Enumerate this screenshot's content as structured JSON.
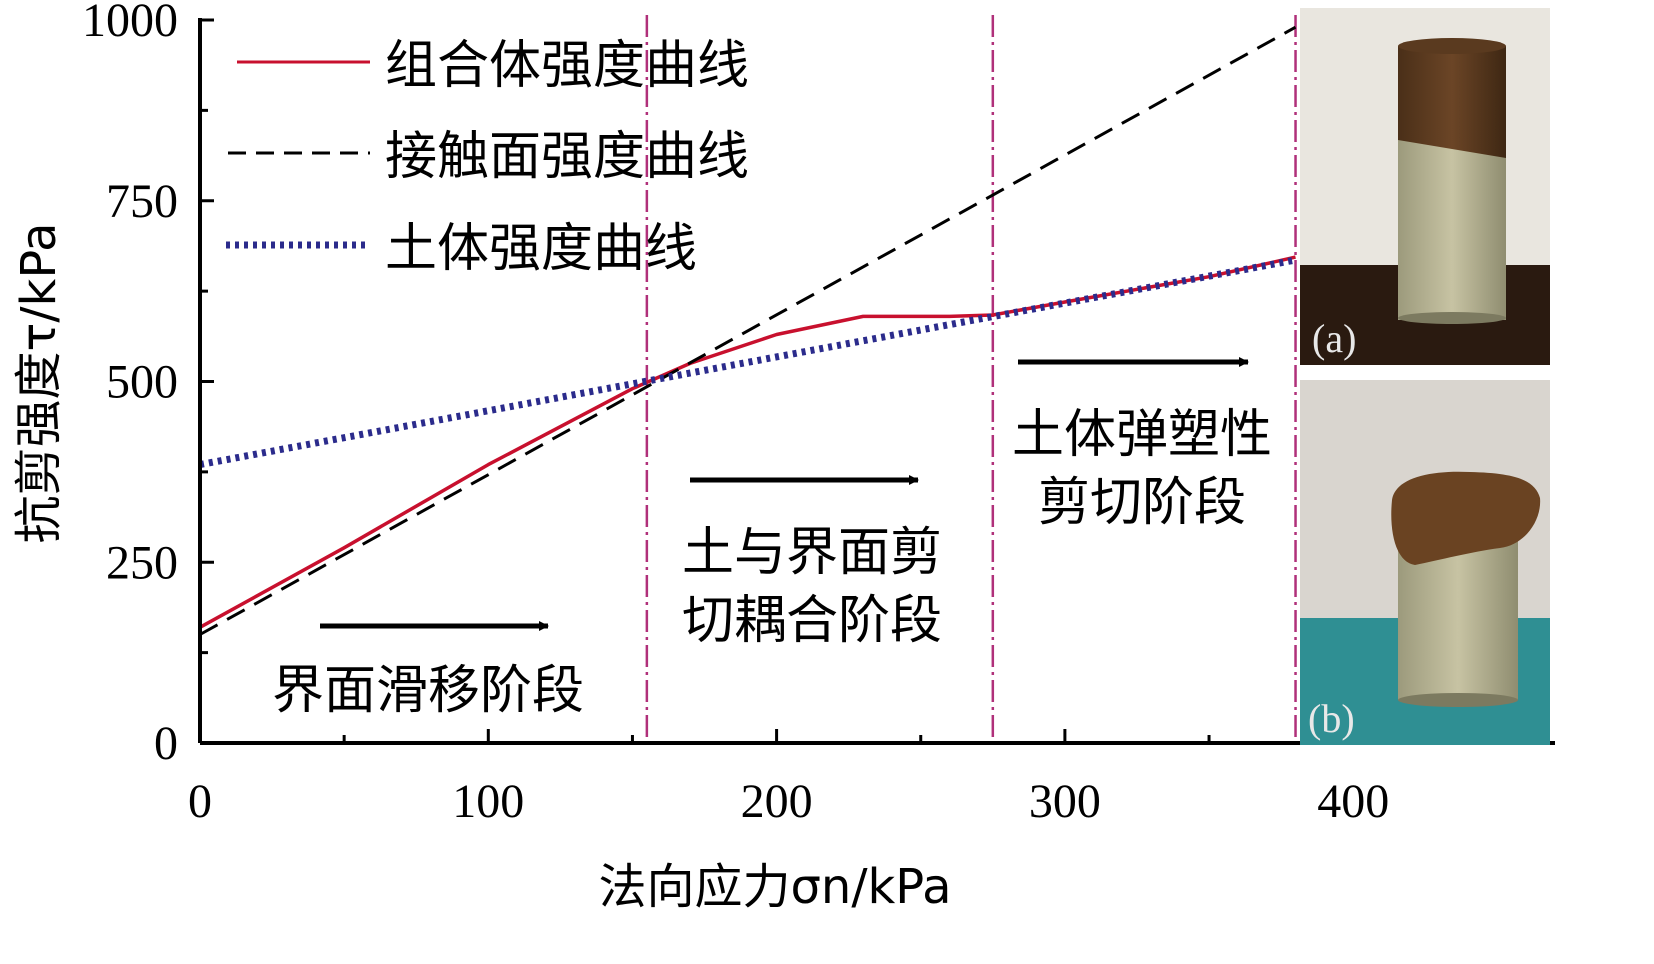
{
  "chart_data": {
    "type": "line",
    "xlabel": "法向应力σn/kPa",
    "ylabel": "抗剪强度τ/kPa",
    "xlim": [
      0,
      470
    ],
    "ylim": [
      0,
      1000
    ],
    "x_ticks": [
      "0",
      "100",
      "200",
      "300",
      "400"
    ],
    "y_ticks": [
      "0",
      "250",
      "500",
      "750",
      "1000"
    ],
    "grid": false,
    "legend_position": "top-left",
    "series": [
      {
        "name": "组合体强度曲线",
        "color": "#c8102e",
        "style": "solid",
        "x": [
          0,
          50,
          100,
          150,
          170,
          200,
          230,
          260,
          275,
          300,
          350,
          380
        ],
        "y": [
          160,
          270,
          385,
          490,
          525,
          565,
          590,
          590,
          592,
          610,
          645,
          672
        ]
      },
      {
        "name": "接触面强度曲线",
        "color": "#000000",
        "style": "dashed",
        "x": [
          0,
          380
        ],
        "y": [
          150,
          990
        ]
      },
      {
        "name": "土体强度曲线",
        "color": "#2b2b8c",
        "style": "dotted",
        "x": [
          0,
          380
        ],
        "y": [
          385,
          668
        ]
      }
    ],
    "boundaries": {
      "x": [
        155,
        275,
        380
      ],
      "color": "#b0307a"
    },
    "stage_labels": [
      {
        "lines": [
          "界面滑移阶段"
        ]
      },
      {
        "lines": [
          "土与界面剪",
          "切耦合阶段"
        ]
      },
      {
        "lines": [
          "土体弹塑性",
          "剪切阶段"
        ]
      }
    ],
    "inset_labels": [
      "(a)",
      "(b)"
    ]
  }
}
